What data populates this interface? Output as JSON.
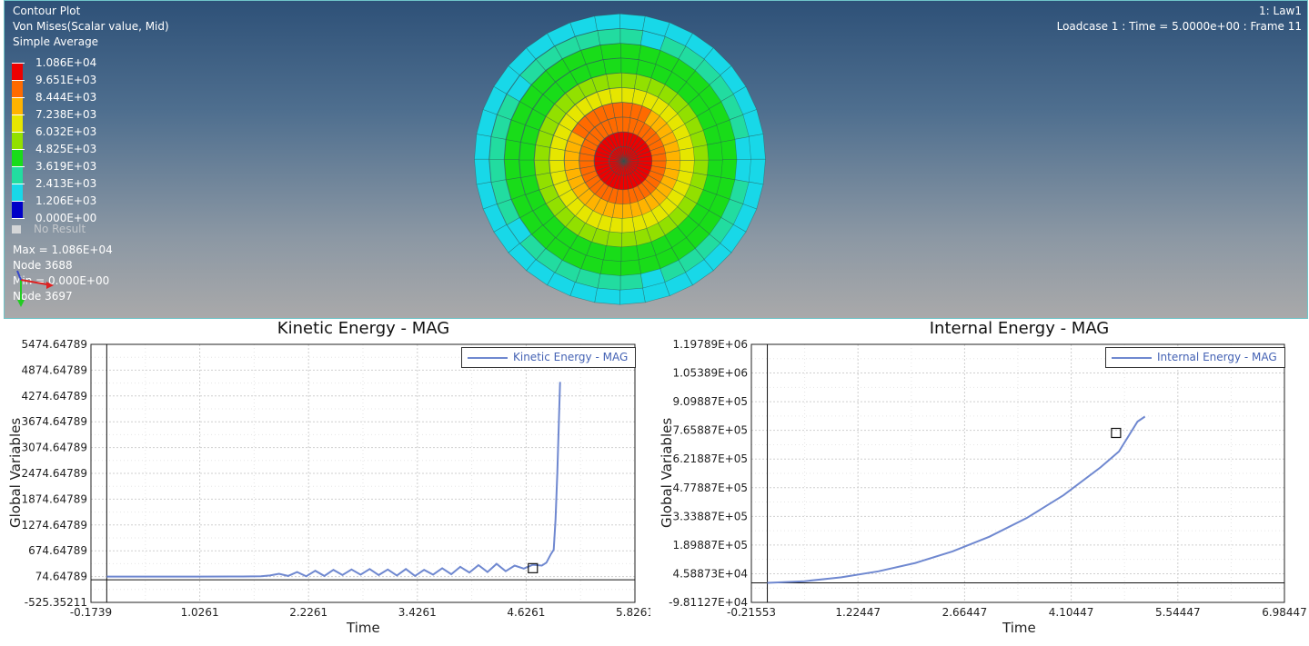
{
  "viewport": {
    "title": "Contour Plot",
    "result_type": "Von Mises(Scalar value, Mid)",
    "averaging": "Simple Average",
    "window_id": "1: Law1",
    "loadcase_info": "Loadcase 1 : Time = 5.0000e+00 : Frame 11",
    "legend": [
      {
        "label": "1.086E+04",
        "color": "#ee0000"
      },
      {
        "label": "9.651E+03",
        "color": "#ff6a00"
      },
      {
        "label": "8.444E+03",
        "color": "#ffb300"
      },
      {
        "label": "7.238E+03",
        "color": "#e6e600"
      },
      {
        "label": "6.032E+03",
        "color": "#92e000"
      },
      {
        "label": "4.825E+03",
        "color": "#19dc19"
      },
      {
        "label": "3.619E+03",
        "color": "#22dca0"
      },
      {
        "label": "2.413E+03",
        "color": "#18d8e8"
      },
      {
        "label": "1.206E+03",
        "color": "#2e7cff"
      },
      {
        "label": "0.000E+00",
        "color": "#0000c8"
      }
    ],
    "no_result_label": "No Result",
    "max_line": "Max =  1.086E+04",
    "max_node": "Node 3688",
    "min_line": "Min =  0.000E+00",
    "min_node": "Node 3697"
  },
  "charts": [
    {
      "title": "Kinetic Energy - MAG",
      "ylabel": "Global Variables",
      "xlabel": "Time",
      "legend_entry": "Kinetic Energy - MAG",
      "line_color": "#6f88d0"
    },
    {
      "title": "Internal Energy - MAG",
      "ylabel": "Global Variables",
      "xlabel": "Time",
      "legend_entry": "Internal Energy - MAG",
      "line_color": "#6f88d0"
    }
  ],
  "chart_data": [
    {
      "type": "line",
      "title": "Kinetic Energy - MAG",
      "xlabel": "Time",
      "ylabel": "Global Variables",
      "xlim": [
        -0.1739,
        5.8261
      ],
      "ylim": [
        -525.35211,
        5474.64789
      ],
      "xticks": [
        "-0.1739",
        "1.0261",
        "2.2261",
        "3.4261",
        "4.6261",
        "5.8261"
      ],
      "yticks": [
        "5474.64789",
        "4874.64789",
        "4274.64789",
        "3674.64789",
        "3074.64789",
        "2474.64789",
        "1874.64789",
        "1274.64789",
        "674.64789",
        "74.64789",
        "-525.35211"
      ],
      "legend_position": "top-right",
      "grid": true,
      "series": [
        {
          "name": "Kinetic Energy - MAG",
          "x": [
            0,
            0.5,
            1.0,
            1.5,
            1.7,
            1.8,
            1.9,
            2.0,
            2.1,
            2.2,
            2.3,
            2.4,
            2.5,
            2.6,
            2.7,
            2.8,
            2.9,
            3.0,
            3.1,
            3.2,
            3.3,
            3.4,
            3.5,
            3.6,
            3.7,
            3.8,
            3.9,
            4.0,
            4.1,
            4.2,
            4.3,
            4.4,
            4.5,
            4.6,
            4.7,
            4.8,
            4.85,
            4.9,
            4.93,
            4.95,
            4.97,
            5.0
          ],
          "y": [
            74.6,
            74.6,
            75,
            76,
            80,
            100,
            140,
            90,
            180,
            80,
            210,
            90,
            230,
            110,
            240,
            120,
            250,
            110,
            240,
            100,
            250,
            90,
            230,
            120,
            270,
            130,
            300,
            170,
            340,
            180,
            370,
            200,
            330,
            260,
            350,
            330,
            400,
            600,
            700,
            1400,
            2500,
            4600
          ]
        }
      ],
      "marker": {
        "x": 4.7,
        "y": 270
      }
    },
    {
      "type": "line",
      "title": "Internal Energy - MAG",
      "xlabel": "Time",
      "ylabel": "Global Variables",
      "xlim": [
        -0.21553,
        6.98447
      ],
      "ylim": [
        -98112.7,
        1197890
      ],
      "xticks": [
        "-0.21553",
        "1.22447",
        "2.66447",
        "4.10447",
        "5.54447",
        "6.98447"
      ],
      "yticks": [
        "1.19789E+06",
        "1.05389E+06",
        "9.09887E+05",
        "7.65887E+05",
        "6.21887E+05",
        "4.77887E+05",
        "3.33887E+05",
        "1.89887E+05",
        "4.58873E+04",
        "-9.81127E+04"
      ],
      "legend_position": "top-right",
      "grid": true,
      "series": [
        {
          "name": "Internal Energy - MAG",
          "x": [
            0,
            0.5,
            1.0,
            1.5,
            2.0,
            2.5,
            3.0,
            3.5,
            4.0,
            4.5,
            4.75,
            5.0,
            5.1
          ],
          "y": [
            0,
            8000,
            28000,
            58000,
            100000,
            158000,
            232000,
            325000,
            440000,
            580000,
            660000,
            810000,
            835000
          ]
        }
      ],
      "marker": {
        "x": 4.71,
        "y": 753000
      }
    }
  ]
}
